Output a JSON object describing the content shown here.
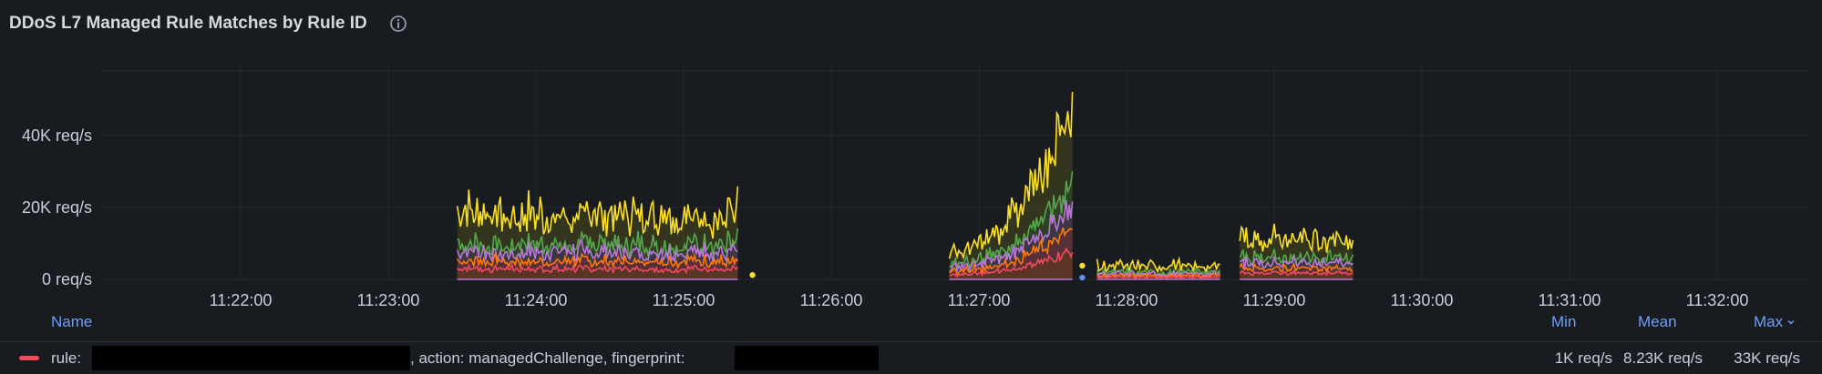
{
  "panel": {
    "title": "DDoS L7 Managed Rule Matches by Rule ID",
    "info_icon": "info-circle-icon"
  },
  "chart_data": {
    "type": "area",
    "title": "DDoS L7 Managed Rule Matches by Rule ID",
    "stacked": false,
    "grid": true,
    "x_ticks": [
      "11:22:00",
      "11:23:00",
      "11:24:00",
      "11:25:00",
      "11:26:00",
      "11:27:00",
      "11:28:00",
      "11:29:00",
      "11:30:00",
      "11:31:00",
      "11:32:00"
    ],
    "x_range": [
      "11:21:00",
      "11:32:40"
    ],
    "y_ticks": [
      "0 req/s",
      "20K req/s",
      "40K req/s"
    ],
    "ylim": [
      0,
      60000
    ],
    "series_colors": [
      "#fade2a",
      "#56a64b",
      "#b877d9",
      "#e0b400",
      "#f2495c",
      "#ff780a",
      "#ffb357",
      "#5794f2",
      "#c4162a"
    ],
    "segments": [
      {
        "start": "11:23:28",
        "end": "11:25:22",
        "points": 170,
        "peak": 30000,
        "base": 18000,
        "noise": 9000
      },
      {
        "start": "11:26:48",
        "end": "11:27:38",
        "points": 80,
        "peak": 53000,
        "base": 8000,
        "noise": 6000
      },
      {
        "start": "11:27:48",
        "end": "11:28:38",
        "points": 70,
        "peak": 7000,
        "base": 3500,
        "noise": 3000
      },
      {
        "start": "11:28:46",
        "end": "11:29:32",
        "points": 70,
        "peak": 24000,
        "base": 11000,
        "noise": 5000
      }
    ],
    "dots": [
      {
        "time": "11:25:28",
        "value": 1200,
        "color": "#fade2a"
      },
      {
        "time": "11:27:42",
        "value": 3800,
        "color": "#fade2a"
      },
      {
        "time": "11:27:42",
        "value": 500,
        "color": "#5794f2"
      }
    ]
  },
  "legend": {
    "columns": {
      "name": "Name",
      "min": "Min",
      "mean": "Mean",
      "max": "Max"
    },
    "rows": [
      {
        "label_rule": "rule:",
        "label_action": ", action: managedChallenge, fingerprint:",
        "color": "#f2495c",
        "min": "1K req/s",
        "mean": "8.23K req/s",
        "max": "33K req/s"
      }
    ]
  }
}
